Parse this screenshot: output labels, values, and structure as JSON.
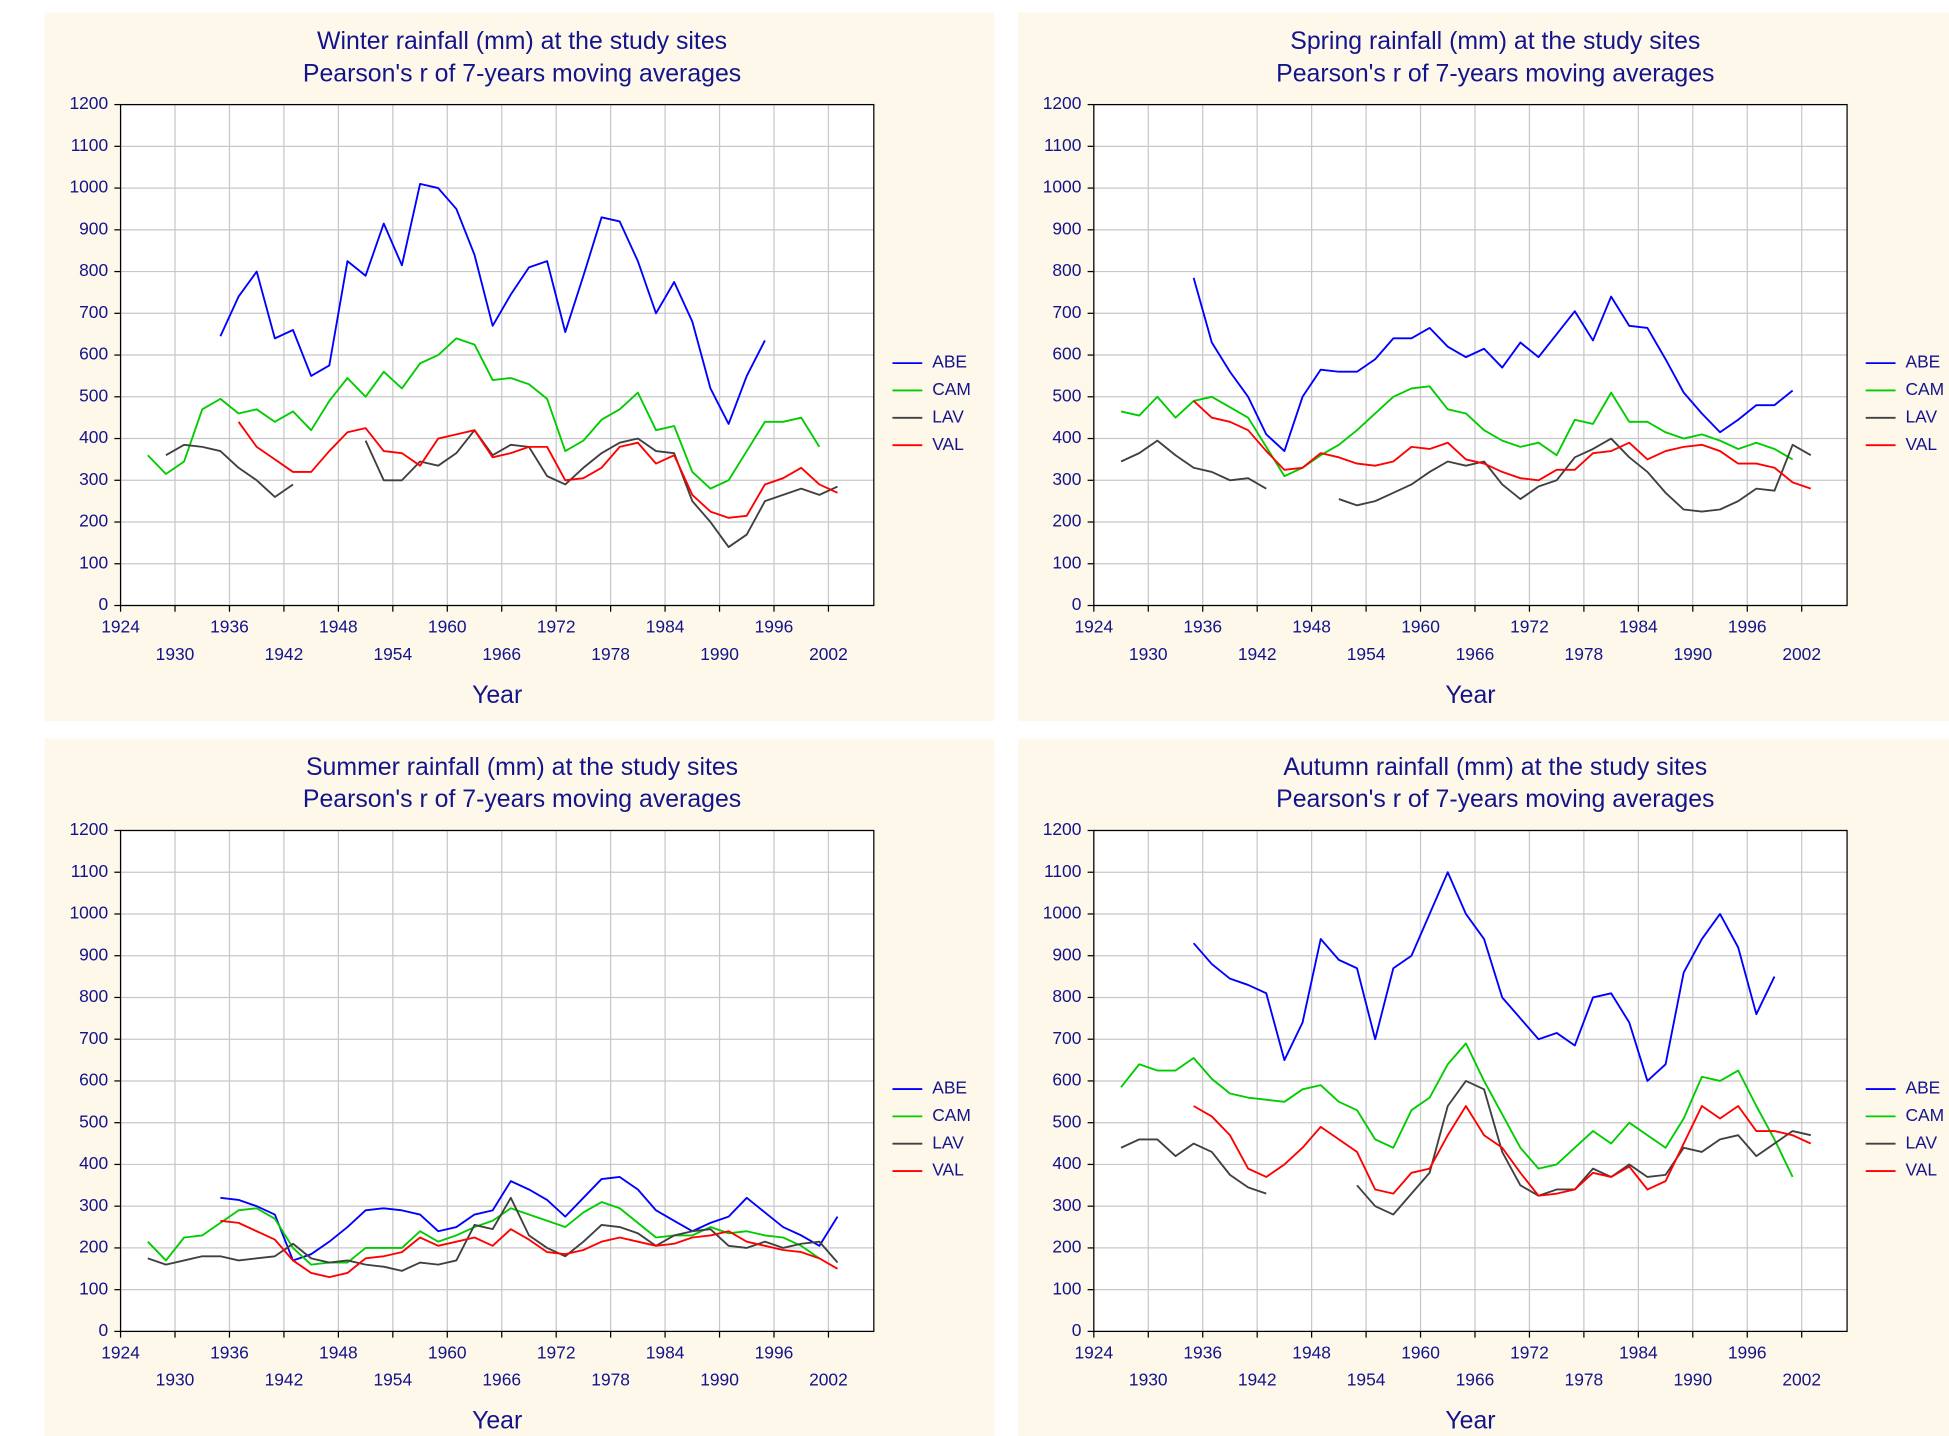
{
  "chart_data": [
    {
      "type": "line",
      "title": "Winter rainfall (mm) at the study sites",
      "subtitle": "Pearson's r of 7-years moving averages",
      "xlabel": "Year",
      "x": [
        1927,
        1929,
        1931,
        1933,
        1935,
        1937,
        1939,
        1941,
        1943,
        1945,
        1947,
        1949,
        1951,
        1953,
        1955,
        1957,
        1959,
        1961,
        1963,
        1965,
        1967,
        1969,
        1971,
        1973,
        1975,
        1977,
        1979,
        1981,
        1983,
        1985,
        1987,
        1989,
        1991,
        1993,
        1995,
        1997,
        1999,
        2001,
        2003
      ],
      "xlim": [
        1924,
        2007
      ],
      "xticks": [
        1924,
        1930,
        1936,
        1942,
        1948,
        1954,
        1960,
        1966,
        1972,
        1978,
        1984,
        1990,
        1996,
        2002
      ],
      "ylim": [
        0,
        1200
      ],
      "yticks": [
        0,
        100,
        200,
        300,
        400,
        500,
        600,
        700,
        800,
        900,
        1000,
        1100,
        1200
      ],
      "grid": true,
      "series": [
        {
          "name": "ABE",
          "color": "#0000ff",
          "values": [
            null,
            null,
            null,
            null,
            645,
            740,
            800,
            640,
            660,
            550,
            575,
            825,
            790,
            915,
            815,
            1010,
            1000,
            950,
            840,
            670,
            745,
            810,
            825,
            655,
            790,
            930,
            920,
            825,
            700,
            775,
            680,
            520,
            435,
            550,
            635,
            null,
            null,
            null,
            null
          ]
        },
        {
          "name": "CAM",
          "color": "#00cc00",
          "values": [
            360,
            315,
            345,
            470,
            495,
            460,
            470,
            440,
            465,
            420,
            490,
            545,
            500,
            560,
            520,
            580,
            600,
            640,
            625,
            540,
            545,
            530,
            495,
            370,
            395,
            445,
            470,
            510,
            420,
            430,
            320,
            280,
            300,
            370,
            440,
            440,
            450,
            380,
            null
          ]
        },
        {
          "name": "LAV",
          "color": "#404040",
          "values": [
            null,
            360,
            385,
            380,
            370,
            330,
            300,
            260,
            290,
            null,
            null,
            null,
            395,
            300,
            300,
            345,
            335,
            365,
            420,
            360,
            385,
            380,
            310,
            290,
            330,
            365,
            390,
            400,
            370,
            365,
            250,
            200,
            140,
            170,
            250,
            265,
            280,
            265,
            285
          ]
        },
        {
          "name": "VAL",
          "color": "#ff0000",
          "values": [
            null,
            null,
            null,
            null,
            null,
            440,
            380,
            350,
            320,
            320,
            370,
            415,
            425,
            370,
            365,
            335,
            400,
            410,
            420,
            355,
            365,
            380,
            380,
            300,
            305,
            330,
            380,
            390,
            340,
            360,
            265,
            225,
            210,
            215,
            290,
            305,
            330,
            290,
            270
          ]
        }
      ]
    },
    {
      "type": "line",
      "title": "Spring rainfall (mm) at the study sites",
      "subtitle": "Pearson's r of 7-years moving averages",
      "xlabel": "Year",
      "x": [
        1927,
        1929,
        1931,
        1933,
        1935,
        1937,
        1939,
        1941,
        1943,
        1945,
        1947,
        1949,
        1951,
        1953,
        1955,
        1957,
        1959,
        1961,
        1963,
        1965,
        1967,
        1969,
        1971,
        1973,
        1975,
        1977,
        1979,
        1981,
        1983,
        1985,
        1987,
        1989,
        1991,
        1993,
        1995,
        1997,
        1999,
        2001,
        2003
      ],
      "xlim": [
        1924,
        2007
      ],
      "xticks": [
        1924,
        1930,
        1936,
        1942,
        1948,
        1954,
        1960,
        1966,
        1972,
        1978,
        1984,
        1990,
        1996,
        2002
      ],
      "ylim": [
        0,
        1200
      ],
      "yticks": [
        0,
        100,
        200,
        300,
        400,
        500,
        600,
        700,
        800,
        900,
        1000,
        1100,
        1200
      ],
      "grid": true,
      "series": [
        {
          "name": "ABE",
          "color": "#0000ff",
          "values": [
            null,
            null,
            null,
            null,
            785,
            630,
            560,
            500,
            410,
            370,
            500,
            565,
            560,
            560,
            590,
            640,
            640,
            665,
            620,
            595,
            615,
            570,
            630,
            595,
            650,
            705,
            635,
            740,
            670,
            665,
            590,
            510,
            460,
            415,
            445,
            480,
            480,
            515,
            null
          ]
        },
        {
          "name": "CAM",
          "color": "#00cc00",
          "values": [
            465,
            455,
            500,
            450,
            490,
            500,
            475,
            450,
            380,
            310,
            330,
            360,
            385,
            420,
            460,
            500,
            520,
            525,
            470,
            460,
            420,
            395,
            380,
            390,
            360,
            445,
            435,
            510,
            440,
            440,
            415,
            400,
            410,
            395,
            375,
            390,
            375,
            350,
            null
          ]
        },
        {
          "name": "LAV",
          "color": "#404040",
          "values": [
            345,
            365,
            395,
            360,
            330,
            320,
            300,
            305,
            280,
            null,
            null,
            null,
            255,
            240,
            250,
            270,
            290,
            320,
            345,
            335,
            345,
            290,
            255,
            285,
            300,
            355,
            375,
            400,
            355,
            320,
            270,
            230,
            225,
            230,
            250,
            280,
            275,
            385,
            360
          ]
        },
        {
          "name": "VAL",
          "color": "#ff0000",
          "values": [
            null,
            null,
            null,
            null,
            490,
            450,
            440,
            420,
            370,
            325,
            330,
            365,
            355,
            340,
            335,
            345,
            380,
            375,
            390,
            350,
            340,
            320,
            305,
            300,
            325,
            325,
            365,
            370,
            390,
            350,
            370,
            380,
            385,
            370,
            340,
            340,
            330,
            295,
            280
          ]
        }
      ]
    },
    {
      "type": "line",
      "title": "Summer rainfall (mm) at the study sites",
      "subtitle": "Pearson's r of 7-years moving averages",
      "xlabel": "Year",
      "x": [
        1927,
        1929,
        1931,
        1933,
        1935,
        1937,
        1939,
        1941,
        1943,
        1945,
        1947,
        1949,
        1951,
        1953,
        1955,
        1957,
        1959,
        1961,
        1963,
        1965,
        1967,
        1969,
        1971,
        1973,
        1975,
        1977,
        1979,
        1981,
        1983,
        1985,
        1987,
        1989,
        1991,
        1993,
        1995,
        1997,
        1999,
        2001,
        2003
      ],
      "xlim": [
        1924,
        2007
      ],
      "xticks": [
        1924,
        1930,
        1936,
        1942,
        1948,
        1954,
        1960,
        1966,
        1972,
        1978,
        1984,
        1990,
        1996,
        2002
      ],
      "ylim": [
        0,
        1200
      ],
      "yticks": [
        0,
        100,
        200,
        300,
        400,
        500,
        600,
        700,
        800,
        900,
        1000,
        1100,
        1200
      ],
      "grid": true,
      "series": [
        {
          "name": "ABE",
          "color": "#0000ff",
          "values": [
            null,
            null,
            null,
            null,
            320,
            315,
            300,
            280,
            170,
            185,
            215,
            250,
            290,
            295,
            290,
            280,
            240,
            250,
            280,
            290,
            360,
            340,
            315,
            275,
            320,
            365,
            370,
            340,
            290,
            265,
            240,
            260,
            275,
            320,
            285,
            250,
            230,
            205,
            275
          ]
        },
        {
          "name": "CAM",
          "color": "#00cc00",
          "values": [
            215,
            170,
            225,
            230,
            260,
            290,
            295,
            270,
            200,
            160,
            165,
            165,
            200,
            200,
            200,
            240,
            215,
            230,
            250,
            265,
            295,
            280,
            265,
            250,
            285,
            310,
            295,
            260,
            225,
            230,
            230,
            250,
            235,
            240,
            230,
            225,
            205,
            175,
            null
          ]
        },
        {
          "name": "LAV",
          "color": "#404040",
          "values": [
            175,
            160,
            170,
            180,
            180,
            170,
            175,
            180,
            210,
            175,
            165,
            170,
            160,
            155,
            145,
            165,
            160,
            170,
            255,
            245,
            320,
            230,
            200,
            180,
            215,
            255,
            250,
            235,
            205,
            230,
            240,
            245,
            205,
            200,
            215,
            200,
            210,
            215,
            165
          ]
        },
        {
          "name": "VAL",
          "color": "#ff0000",
          "values": [
            null,
            null,
            null,
            null,
            265,
            260,
            240,
            220,
            170,
            140,
            130,
            140,
            175,
            180,
            190,
            225,
            205,
            215,
            225,
            205,
            245,
            220,
            190,
            185,
            195,
            215,
            225,
            215,
            205,
            210,
            225,
            230,
            240,
            215,
            205,
            195,
            190,
            175,
            150
          ]
        }
      ]
    },
    {
      "type": "line",
      "title": "Autumn rainfall (mm) at the study sites",
      "subtitle": "Pearson's r of 7-years moving averages",
      "xlabel": "Year",
      "x": [
        1927,
        1929,
        1931,
        1933,
        1935,
        1937,
        1939,
        1941,
        1943,
        1945,
        1947,
        1949,
        1951,
        1953,
        1955,
        1957,
        1959,
        1961,
        1963,
        1965,
        1967,
        1969,
        1971,
        1973,
        1975,
        1977,
        1979,
        1981,
        1983,
        1985,
        1987,
        1989,
        1991,
        1993,
        1995,
        1997,
        1999,
        2001,
        2003
      ],
      "xlim": [
        1924,
        2007
      ],
      "xticks": [
        1924,
        1930,
        1936,
        1942,
        1948,
        1954,
        1960,
        1966,
        1972,
        1978,
        1984,
        1990,
        1996,
        2002
      ],
      "ylim": [
        0,
        1200
      ],
      "yticks": [
        0,
        100,
        200,
        300,
        400,
        500,
        600,
        700,
        800,
        900,
        1000,
        1100,
        1200
      ],
      "grid": true,
      "series": [
        {
          "name": "ABE",
          "color": "#0000ff",
          "values": [
            null,
            null,
            null,
            null,
            930,
            880,
            845,
            830,
            810,
            650,
            740,
            940,
            890,
            870,
            700,
            870,
            900,
            1000,
            1100,
            1000,
            940,
            800,
            750,
            700,
            715,
            685,
            800,
            810,
            740,
            600,
            640,
            860,
            940,
            1000,
            920,
            760,
            850,
            null,
            null
          ]
        },
        {
          "name": "CAM",
          "color": "#00cc00",
          "values": [
            585,
            640,
            625,
            625,
            655,
            605,
            570,
            560,
            555,
            550,
            580,
            590,
            550,
            530,
            460,
            440,
            530,
            560,
            640,
            690,
            600,
            520,
            440,
            390,
            400,
            440,
            480,
            450,
            500,
            470,
            440,
            510,
            610,
            600,
            625,
            540,
            460,
            370,
            null
          ]
        },
        {
          "name": "LAV",
          "color": "#404040",
          "values": [
            440,
            460,
            460,
            420,
            450,
            430,
            375,
            345,
            330,
            null,
            null,
            null,
            null,
            350,
            300,
            280,
            330,
            380,
            540,
            600,
            580,
            430,
            350,
            325,
            340,
            340,
            390,
            370,
            400,
            370,
            375,
            440,
            430,
            460,
            470,
            420,
            450,
            480,
            470
          ]
        },
        {
          "name": "VAL",
          "color": "#ff0000",
          "values": [
            null,
            null,
            null,
            null,
            540,
            515,
            470,
            390,
            370,
            400,
            440,
            490,
            460,
            430,
            340,
            330,
            380,
            390,
            470,
            540,
            470,
            440,
            380,
            325,
            330,
            340,
            380,
            370,
            395,
            340,
            360,
            450,
            540,
            510,
            540,
            480,
            480,
            470,
            450
          ]
        }
      ]
    }
  ]
}
